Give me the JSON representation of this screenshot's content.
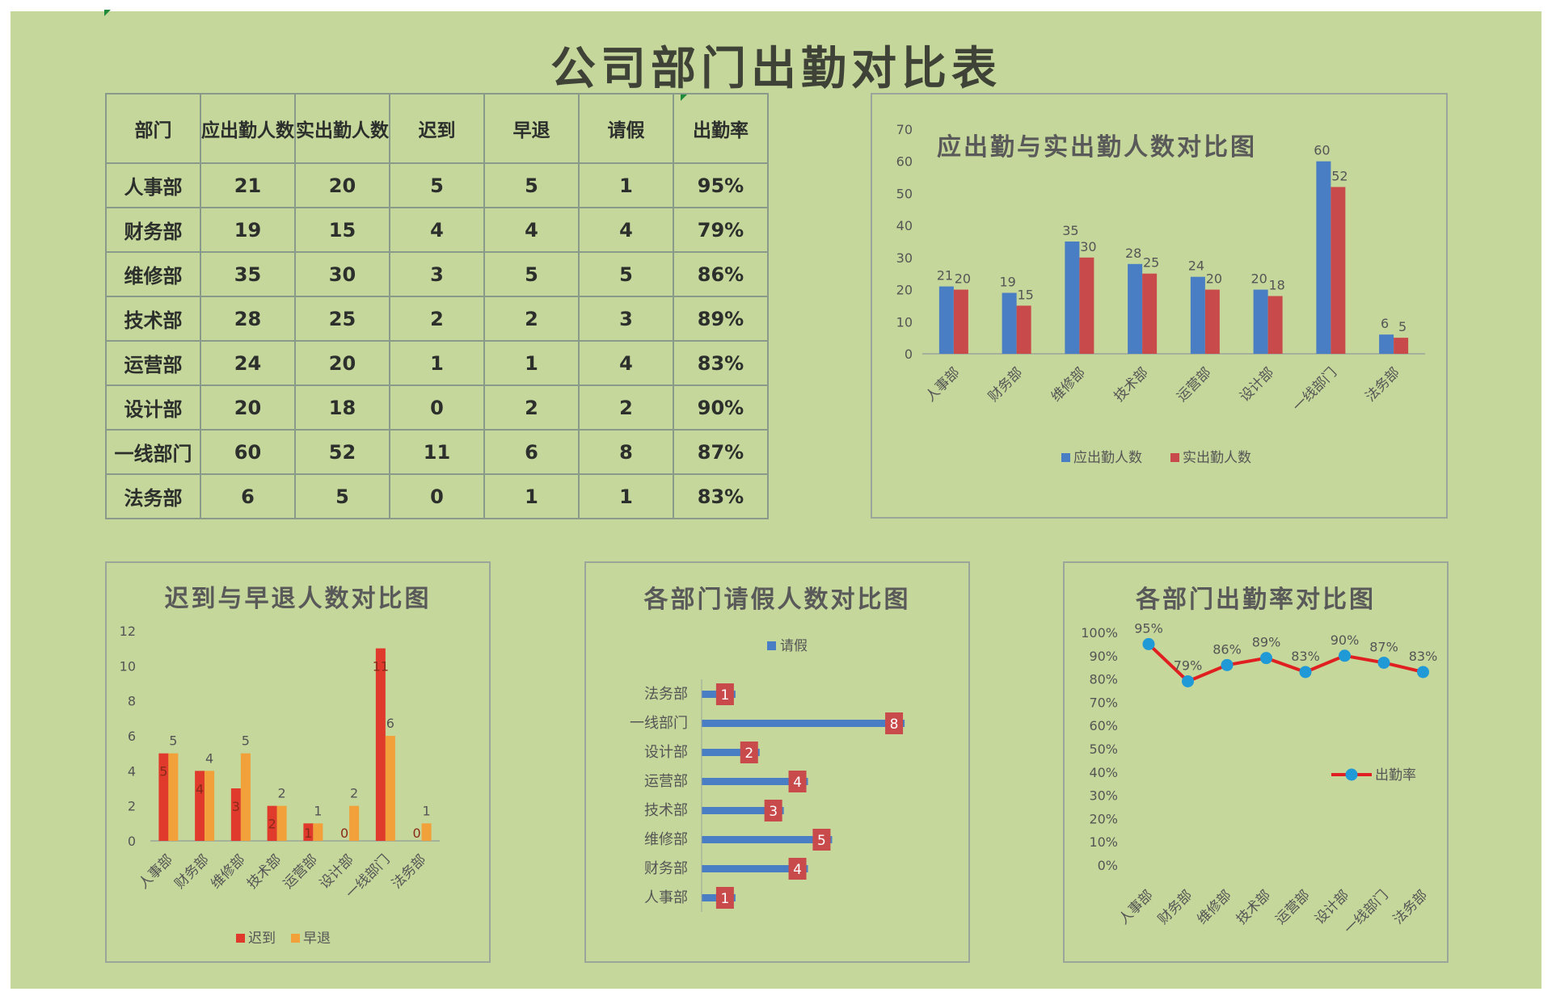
{
  "title": "公司部门出勤对比表",
  "table": {
    "headers": [
      "部门",
      "应出勤人数",
      "实出勤人数",
      "迟到",
      "早退",
      "请假",
      "出勤率"
    ],
    "rows": [
      [
        "人事部",
        "21",
        "20",
        "5",
        "5",
        "1",
        "95%"
      ],
      [
        "财务部",
        "19",
        "15",
        "4",
        "4",
        "4",
        "79%"
      ],
      [
        "维修部",
        "35",
        "30",
        "3",
        "5",
        "5",
        "86%"
      ],
      [
        "技术部",
        "28",
        "25",
        "2",
        "2",
        "3",
        "89%"
      ],
      [
        "运营部",
        "24",
        "20",
        "1",
        "1",
        "4",
        "83%"
      ],
      [
        "设计部",
        "20",
        "18",
        "0",
        "2",
        "2",
        "90%"
      ],
      [
        "一线部门",
        "60",
        "52",
        "11",
        "6",
        "8",
        "87%"
      ],
      [
        "法务部",
        "6",
        "5",
        "0",
        "1",
        "1",
        "83%"
      ]
    ]
  },
  "chart_data": [
    {
      "type": "bar",
      "title": "应出勤与实出勤人数对比图",
      "categories": [
        "人事部",
        "财务部",
        "维修部",
        "技术部",
        "运营部",
        "设计部",
        "一线部门",
        "法务部"
      ],
      "series": [
        {
          "name": "应出勤人数",
          "values": [
            21,
            19,
            35,
            28,
            24,
            20,
            60,
            6
          ],
          "color": "#4a7ec4"
        },
        {
          "name": "实出勤人数",
          "values": [
            20,
            15,
            30,
            25,
            20,
            18,
            52,
            5
          ],
          "color": "#c94a4a"
        }
      ],
      "ylim": [
        0,
        70
      ],
      "yticks": [
        0,
        10,
        20,
        30,
        40,
        50,
        60,
        70
      ],
      "legend": "bottom",
      "grid": false
    },
    {
      "type": "bar",
      "title": "迟到与早退人数对比图",
      "categories": [
        "人事部",
        "财务部",
        "维修部",
        "技术部",
        "运营部",
        "设计部",
        "一线部门",
        "法务部"
      ],
      "series": [
        {
          "name": "迟到",
          "values": [
            5,
            4,
            3,
            2,
            1,
            0,
            11,
            0
          ],
          "color": "#e03a2c"
        },
        {
          "name": "早退",
          "values": [
            5,
            4,
            5,
            2,
            1,
            2,
            6,
            1
          ],
          "color": "#f2a03a"
        }
      ],
      "ylim": [
        0,
        12
      ],
      "yticks": [
        0,
        2,
        4,
        6,
        8,
        10,
        12
      ],
      "legend": "bottom",
      "grid": false
    },
    {
      "type": "bar",
      "orientation": "horizontal",
      "title": "各部门请假人数对比图",
      "categories": [
        "人事部",
        "财务部",
        "维修部",
        "技术部",
        "运营部",
        "设计部",
        "一线部门",
        "法务部"
      ],
      "series": [
        {
          "name": "请假",
          "values": [
            1,
            4,
            5,
            3,
            4,
            2,
            8,
            1
          ],
          "color": "#4a7ec4"
        }
      ],
      "label_color": "#c94a4a",
      "legend": "top",
      "grid": false
    },
    {
      "type": "line",
      "title": "各部门出勤率对比图",
      "categories": [
        "人事部",
        "财务部",
        "维修部",
        "技术部",
        "运营部",
        "设计部",
        "一线部门",
        "法务部"
      ],
      "series": [
        {
          "name": "出勤率",
          "values": [
            95,
            79,
            86,
            89,
            83,
            90,
            87,
            83
          ],
          "labels": [
            "95%",
            "79%",
            "86%",
            "89%",
            "83%",
            "90%",
            "87%",
            "83%"
          ],
          "color": "#e02020",
          "marker_color": "#1f9ad6"
        }
      ],
      "ylim": [
        0,
        100
      ],
      "yticks": [
        "0%",
        "10%",
        "20%",
        "30%",
        "40%",
        "50%",
        "60%",
        "70%",
        "80%",
        "90%",
        "100%"
      ],
      "legend": "right",
      "grid": false
    }
  ]
}
